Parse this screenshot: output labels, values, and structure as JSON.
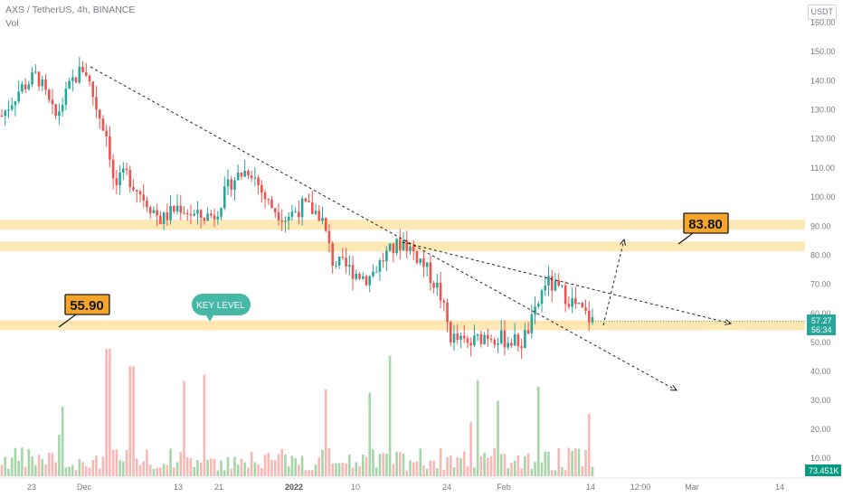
{
  "header": {
    "symbol_line": "AXS / TetherUS, 4h, BINANCE",
    "volume_label": "Vol"
  },
  "currency_button": "USDT",
  "colors": {
    "up": "#26a69a",
    "down": "#ef5350",
    "up_volume": "#a5d6a7",
    "down_volume": "#f7b7b5",
    "zone": "#fde8b6",
    "label_fill": "#f7a528",
    "key_level": "#45b8a6",
    "price_tag": "#26a69a",
    "volume_tag": "#089981"
  },
  "chart_data": {
    "type": "candlestick",
    "y_axis": {
      "ticks": [
        "160.00",
        "150.00",
        "140.00",
        "130.00",
        "120.00",
        "110.00",
        "100.00",
        "90.00",
        "80.00",
        "70.00",
        "60.00",
        "50.00",
        "40.00",
        "30.00",
        "20.00",
        "10.00"
      ],
      "tick_values": [
        160,
        150,
        140,
        130,
        120,
        110,
        100,
        90,
        80,
        70,
        60,
        50,
        40,
        30,
        20,
        10
      ],
      "price_range": [
        50,
        160
      ]
    },
    "x_axis": {
      "labels": [
        {
          "text": "23",
          "bold": false
        },
        {
          "text": "Dec",
          "bold": false
        },
        {
          "text": "13",
          "bold": false
        },
        {
          "text": "21",
          "bold": false
        },
        {
          "text": "2022",
          "bold": true
        },
        {
          "text": "10",
          "bold": false
        },
        {
          "text": "24",
          "bold": false
        },
        {
          "text": "Feb",
          "bold": false
        },
        {
          "text": "14",
          "bold": false
        },
        {
          "text": "12:00",
          "bold": false
        },
        {
          "text": "Mar",
          "bold": false
        },
        {
          "text": "14",
          "bold": false
        }
      ]
    },
    "price_path": [
      {
        "t": 0,
        "p": 128
      },
      {
        "t": 0.03,
        "p": 137
      },
      {
        "t": 0.06,
        "p": 142
      },
      {
        "t": 0.09,
        "p": 127
      },
      {
        "t": 0.12,
        "p": 140
      },
      {
        "t": 0.14,
        "p": 145
      },
      {
        "t": 0.16,
        "p": 131
      },
      {
        "t": 0.18,
        "p": 120
      },
      {
        "t": 0.19,
        "p": 103
      },
      {
        "t": 0.21,
        "p": 108
      },
      {
        "t": 0.24,
        "p": 100
      },
      {
        "t": 0.27,
        "p": 92
      },
      {
        "t": 0.3,
        "p": 97
      },
      {
        "t": 0.33,
        "p": 93
      },
      {
        "t": 0.36,
        "p": 94
      },
      {
        "t": 0.39,
        "p": 106
      },
      {
        "t": 0.42,
        "p": 110
      },
      {
        "t": 0.45,
        "p": 98
      },
      {
        "t": 0.48,
        "p": 93
      },
      {
        "t": 0.51,
        "p": 97
      },
      {
        "t": 0.54,
        "p": 94
      },
      {
        "t": 0.56,
        "p": 78
      },
      {
        "t": 0.59,
        "p": 75
      },
      {
        "t": 0.62,
        "p": 72
      },
      {
        "t": 0.65,
        "p": 80
      },
      {
        "t": 0.68,
        "p": 85
      },
      {
        "t": 0.71,
        "p": 78
      },
      {
        "t": 0.74,
        "p": 68
      },
      {
        "t": 0.76,
        "p": 52
      },
      {
        "t": 0.79,
        "p": 49
      },
      {
        "t": 0.82,
        "p": 53
      },
      {
        "t": 0.85,
        "p": 51
      },
      {
        "t": 0.88,
        "p": 50
      },
      {
        "t": 0.9,
        "p": 58
      },
      {
        "t": 0.92,
        "p": 71
      },
      {
        "t": 0.95,
        "p": 67
      },
      {
        "t": 0.98,
        "p": 61
      },
      {
        "t": 1.0,
        "p": 57.27
      }
    ],
    "candle_count": 176,
    "zones": [
      90.5,
      83.0,
      55.9
    ],
    "trend_lines": [
      {
        "from": [
          0.26,
          145
        ],
        "to": [
          1.92,
          36
        ],
        "arrow": true
      },
      {
        "from": [
          1.32,
          83.8
        ],
        "to": [
          2.0,
          57.5
        ],
        "arrow": true
      }
    ],
    "projection_arrow": {
      "from": [
        1.43,
        56
      ],
      "to": [
        1.5,
        85
      ]
    },
    "labels": {
      "support_price": "55.90",
      "resistance_price": "83.80",
      "key_level": "KEY LEVEL"
    },
    "last_price_tag": {
      "price": "57.27",
      "countdown": "56:34"
    },
    "volume_tag": "73.451K"
  }
}
